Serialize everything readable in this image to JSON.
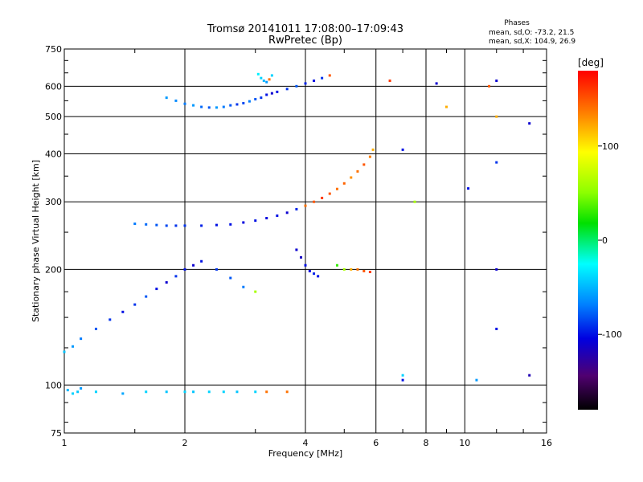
{
  "chart_data": {
    "type": "scatter",
    "title": "Tromsø 20141011 17:08:00–17:09:43",
    "subtitle": "RwPretec (Bp)",
    "stats": {
      "heading": "Phases",
      "line1": "mean, sd,O: -73.2, 21.5",
      "line2": "mean, sd,X: 104.9, 26.9"
    },
    "xlabel": "Frequency [MHz]",
    "ylabel": "Stationary phase Virtual Height [km]",
    "x_scale": "log",
    "y_scale": "log",
    "xlim": [
      1,
      16
    ],
    "ylim": [
      75,
      750
    ],
    "x_ticks": [
      1,
      2,
      4,
      6,
      8,
      10,
      16
    ],
    "x_tick_labels": [
      "1",
      "2",
      "4",
      "6",
      "8",
      "10",
      "16"
    ],
    "y_ticks": [
      75,
      100,
      200,
      300,
      400,
      500,
      600,
      750
    ],
    "y_tick_labels": [
      "75",
      "100",
      "200",
      "300",
      "400",
      "500",
      "600",
      "750"
    ],
    "grid": true,
    "colorbar": {
      "label": "[deg]",
      "range": [
        -180,
        180
      ],
      "ticks": [
        100,
        0,
        -100
      ],
      "tick_labels": [
        "100",
        "0",
        "-100"
      ]
    },
    "series": [
      {
        "x": [
          1.02,
          1.05,
          1.08,
          1.1,
          1.2,
          1.4,
          1.6,
          1.8,
          2.0,
          2.1,
          2.3,
          2.5,
          2.7,
          3.0,
          3.2,
          3.6
        ],
        "y": [
          97,
          95,
          96,
          98,
          96,
          95,
          96,
          96,
          96,
          96,
          96,
          96,
          96,
          96,
          96,
          96
        ],
        "phase": [
          -50,
          -40,
          -45,
          -60,
          -40,
          -55,
          -40,
          -45,
          -40,
          -45,
          -40,
          -40,
          -45,
          -40,
          140,
          140
        ]
      },
      {
        "x": [
          1.0,
          1.05,
          1.1,
          1.2,
          1.3,
          1.4,
          1.5,
          1.6,
          1.7,
          1.8,
          1.9,
          2.0,
          2.1,
          2.2,
          2.4,
          2.6,
          2.8,
          3.0
        ],
        "y": [
          122,
          126,
          132,
          140,
          148,
          155,
          162,
          170,
          178,
          185,
          192,
          200,
          205,
          210,
          200,
          190,
          180,
          175
        ],
        "phase": [
          -45,
          -60,
          -70,
          -80,
          -90,
          -100,
          -90,
          -80,
          -100,
          -110,
          -90,
          -100,
          -110,
          -100,
          -90,
          -80,
          -70,
          60
        ]
      },
      {
        "x": [
          1.5,
          1.6,
          1.7,
          1.8,
          1.9,
          2.0,
          2.2,
          2.4,
          2.6,
          2.8,
          3.0,
          3.2,
          3.4,
          3.6,
          3.8,
          4.0,
          4.2,
          4.4,
          4.6,
          4.8,
          5.0,
          5.2,
          5.4,
          5.6,
          5.8,
          5.9
        ],
        "y": [
          263,
          262,
          261,
          260,
          260,
          260,
          260,
          261,
          262,
          265,
          268,
          272,
          276,
          281,
          287,
          293,
          300,
          307,
          315,
          324,
          335,
          347,
          360,
          375,
          393,
          410
        ],
        "phase": [
          -70,
          -75,
          -80,
          -85,
          -90,
          -90,
          -95,
          -100,
          -100,
          -105,
          -100,
          -105,
          -100,
          -110,
          -95,
          140,
          150,
          160,
          150,
          140,
          145,
          130,
          140,
          150,
          135,
          120
        ]
      },
      {
        "x": [
          1.8,
          1.9,
          2.0,
          2.1,
          2.2,
          2.3,
          2.4,
          2.5,
          2.6,
          2.7,
          2.8,
          2.9,
          3.0,
          3.1,
          3.2,
          3.3,
          3.4,
          3.6,
          3.8,
          4.0,
          4.2,
          4.4,
          4.6
        ],
        "y": [
          560,
          550,
          540,
          535,
          530,
          528,
          528,
          530,
          535,
          538,
          542,
          548,
          555,
          560,
          570,
          575,
          580,
          590,
          600,
          610,
          620,
          630,
          640
        ],
        "phase": [
          -60,
          -65,
          -70,
          -60,
          -75,
          -80,
          -60,
          -70,
          -80,
          -90,
          -85,
          -70,
          -80,
          -90,
          -100,
          -110,
          -100,
          -90,
          -80,
          -95,
          -100,
          -90,
          150
        ]
      },
      {
        "x": [
          3.05,
          3.1,
          3.15,
          3.2,
          3.25,
          3.3
        ],
        "y": [
          645,
          630,
          620,
          615,
          625,
          640
        ],
        "phase": [
          -30,
          -40,
          -50,
          -60,
          140,
          -40
        ]
      },
      {
        "x": [
          3.8,
          3.9,
          4.0,
          4.1,
          4.2,
          4.3
        ],
        "y": [
          225,
          215,
          205,
          198,
          195,
          192
        ],
        "phase": [
          -110,
          -115,
          -100,
          -105,
          -95,
          -100
        ]
      },
      {
        "x": [
          4.8,
          5.0,
          5.2,
          5.4,
          5.6,
          5.8
        ],
        "y": [
          205,
          200,
          200,
          200,
          198,
          197
        ],
        "phase": [
          30,
          60,
          120,
          140,
          150,
          160
        ]
      },
      {
        "x": [
          6.5,
          7.0,
          7.5,
          8.5,
          9.0,
          10.2,
          11.5,
          12.0,
          12.0,
          12.0,
          12.0,
          12.0,
          14.5
        ],
        "y": [
          620,
          410,
          300,
          610,
          530,
          325,
          600,
          620,
          500,
          380,
          200,
          140,
          480
        ],
        "phase": [
          160,
          -100,
          60,
          -110,
          120,
          -100,
          150,
          -110,
          120,
          -90,
          -110,
          -100,
          -110
        ]
      },
      {
        "x": [
          7.0,
          7.0,
          10.7,
          14.5
        ],
        "y": [
          106,
          103,
          103,
          106
        ],
        "phase": [
          -40,
          -100,
          -60,
          -120
        ]
      }
    ]
  }
}
